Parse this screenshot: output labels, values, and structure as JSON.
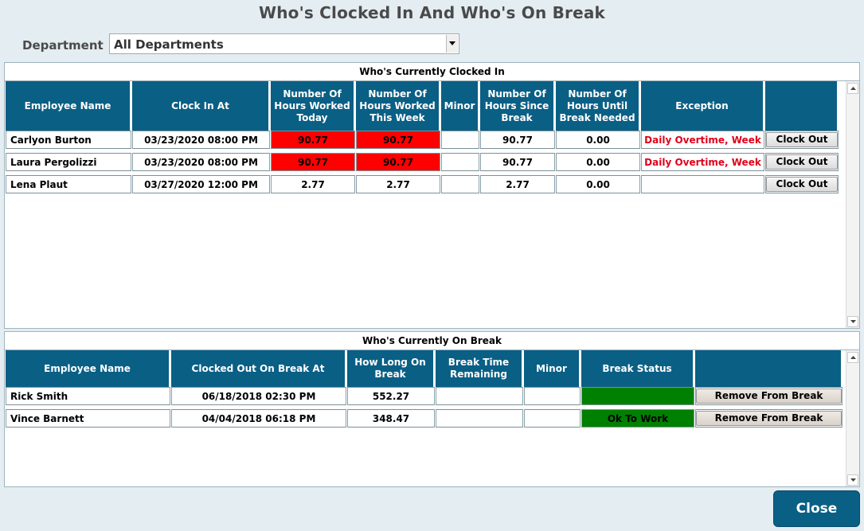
{
  "window_title": "Who's Clocked In And Who's On Break",
  "department": {
    "label": "Department",
    "selected": "All Departments"
  },
  "clocked_in": {
    "title": "Who's Currently Clocked In",
    "columns": [
      "Employee Name",
      "Clock In At",
      "Number Of Hours Worked Today",
      "Number Of Hours Worked This Week",
      "Minor",
      "Number Of Hours Since Break",
      "Number Of Hours Until Break Needed",
      "Exception",
      ""
    ],
    "rows": [
      {
        "name": "Carlyon Burton",
        "clock_in": "03/23/2020 08:00 PM",
        "today": "90.77",
        "week": "90.77",
        "minor": "",
        "since_break": "90.77",
        "until_break": "0.00",
        "exception": "Daily Overtime, Week",
        "action": "Clock Out"
      },
      {
        "name": "Laura Pergolizzi",
        "clock_in": "03/23/2020 08:00 PM",
        "today": "90.77",
        "week": "90.77",
        "minor": "",
        "since_break": "90.77",
        "until_break": "0.00",
        "exception": "Daily Overtime, Week",
        "action": "Clock Out"
      },
      {
        "name": "Lena Plaut",
        "clock_in": "03/27/2020 12:00 PM",
        "today": "2.77",
        "week": "2.77",
        "minor": "",
        "since_break": "2.77",
        "until_break": "0.00",
        "exception": "",
        "action": "Clock Out"
      }
    ]
  },
  "on_break": {
    "title": "Who's Currently On Break",
    "columns": [
      "Employee Name",
      "Clocked Out On Break At",
      "How Long On Break",
      "Break Time Remaining",
      "Minor",
      "Break Status",
      ""
    ],
    "rows": [
      {
        "name": "Rick Smith",
        "clocked_out": "06/18/2018 02:30 PM",
        "how_long": "552.27",
        "remaining": "",
        "minor": "",
        "status": "",
        "action": "Remove From Break"
      },
      {
        "name": "Vince Barnett",
        "clocked_out": "04/04/2018 06:18 PM",
        "how_long": "348.47",
        "remaining": "",
        "minor": "",
        "status": "Ok To Work",
        "action": "Remove From Break"
      }
    ]
  },
  "close_label": "Close",
  "colors": {
    "header_blue": "#0a5f85",
    "alert_red": "#ff0000",
    "ok_green": "#008000",
    "exception_text": "#e0001b"
  }
}
